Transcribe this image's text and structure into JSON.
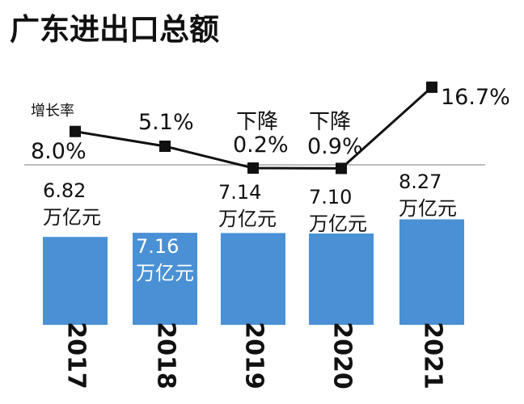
{
  "chart_data": {
    "title": "广东进出口总额",
    "type": "bar",
    "categories": [
      "2017",
      "2018",
      "2019",
      "2020",
      "2021"
    ],
    "bar_series": {
      "name": "进出口总额",
      "values": [
        6.82,
        7.16,
        7.14,
        7.1,
        8.27
      ],
      "labels": [
        "6.82",
        "7.16",
        "7.14",
        "7.10",
        "8.27"
      ],
      "unit": "万亿元",
      "color": "#4a90d4"
    },
    "line_series": {
      "name": "增长率",
      "values": [
        8.0,
        5.1,
        -0.2,
        -0.9,
        16.7
      ],
      "labels": [
        {
          "prefix": "",
          "value": "8.0%"
        },
        {
          "prefix": "",
          "value": "5.1%"
        },
        {
          "prefix": "下降",
          "value": "0.2%"
        },
        {
          "prefix": "下降",
          "value": "0.9%"
        },
        {
          "prefix": "",
          "value": "16.7%"
        }
      ],
      "color": "#111111"
    }
  }
}
